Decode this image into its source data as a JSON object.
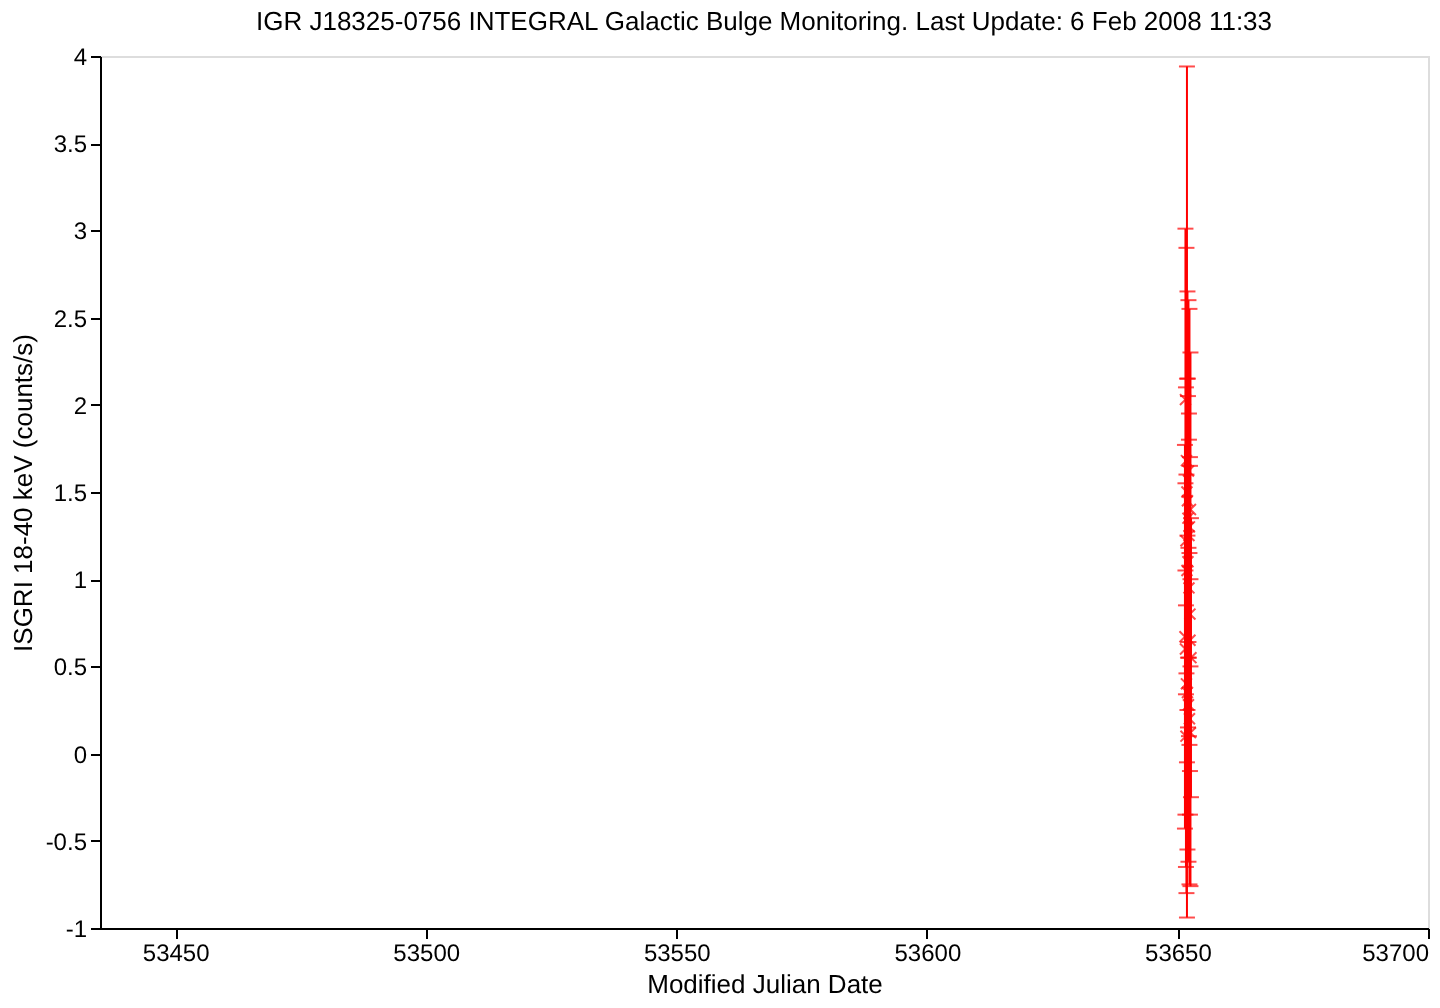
{
  "chart_data": {
    "type": "scatter",
    "title": "IGR J18325-0756   INTEGRAL Galactic Bulge Monitoring.  Last Update: 6 Feb 2008 11:33",
    "xlabel": "Modified Julian Date",
    "ylabel": "ISGRI 18-40 keV (counts/s)",
    "x": [
      53651.6,
      53651.8,
      53652.0,
      53652.2,
      53652.4,
      53652.6,
      53651.7,
      53651.9,
      53652.1,
      53652.3,
      53652.5,
      53651.5,
      53651.6,
      53652.7,
      53651.8,
      53652.0,
      53652.2,
      53652.4,
      53652.6,
      53651.7,
      53652.1,
      53652.3,
      53652.5,
      53651.9
    ],
    "series": [
      {
        "color": "#ff0000",
        "values": [
          2.03,
          1.68,
          1.45,
          1.62,
          1.3,
          1.4,
          1.22,
          1.5,
          1.1,
          0.95,
          0.8,
          0.67,
          0.6,
          0.55,
          0.4,
          0.35,
          0.28,
          0.2,
          0.12,
          0.1,
          1.35,
          1.25,
          0.65,
          1.05
        ],
        "errors": [
          0.98,
          1.22,
          1.2,
          0.98,
          1.25,
          0.9,
          0.88,
          2.44,
          0.95,
          0.85,
          0.9,
          1.1,
          0.95,
          0.8,
          1.2,
          0.9,
          0.9,
          0.95,
          0.88,
          0.75,
          0.8,
          0.7,
          1.0,
          1.1
        ]
      }
    ],
    "marker": "cross",
    "grid": false,
    "xlim": [
      53435,
      53700
    ],
    "xticks": [
      53450,
      53500,
      53550,
      53600,
      53650,
      53700
    ],
    "ylim": [
      -1,
      4
    ],
    "yticks": [
      -1,
      -0.5,
      0,
      0.5,
      1,
      1.5,
      2,
      2.5,
      3,
      3.5,
      4
    ]
  }
}
